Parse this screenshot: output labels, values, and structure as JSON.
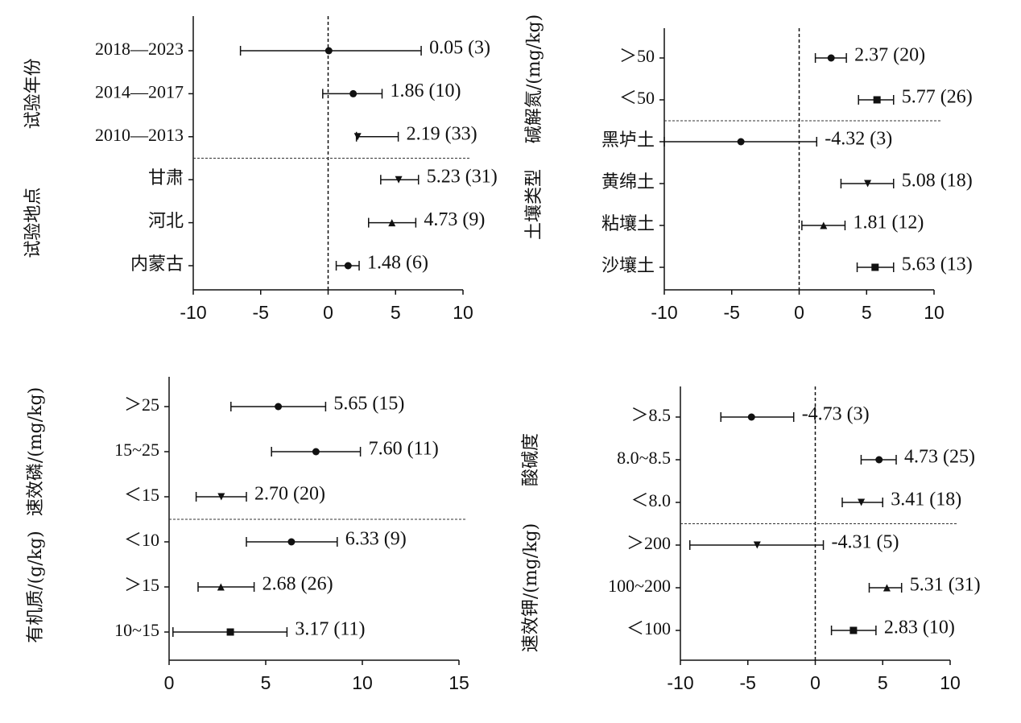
{
  "chart_data": [
    {
      "type": "forest",
      "xlim": [
        -10,
        10
      ],
      "xticks": [
        -10,
        -5,
        0,
        5,
        10
      ],
      "refline": 0,
      "groups": [
        {
          "label": "试验年份",
          "categories": [
            "2018—2023",
            "2014—2017",
            "2010—2013"
          ],
          "values": [
            0.05,
            1.86,
            2.19
          ],
          "lower": [
            -6.5,
            -0.4,
            2.1
          ],
          "upper": [
            6.9,
            4.0,
            5.2
          ],
          "value_labels": [
            "0.05 (3)",
            "1.86 (10)",
            "2.19 (33)"
          ],
          "markers": [
            "circle",
            "circle",
            "triangle-down"
          ]
        },
        {
          "label": "试验地点",
          "categories": [
            "甘肃",
            "河北",
            "内蒙古"
          ],
          "values": [
            5.23,
            4.73,
            1.48
          ],
          "lower": [
            3.9,
            3.0,
            0.6
          ],
          "upper": [
            6.7,
            6.5,
            2.3
          ],
          "value_labels": [
            "5.23 (31)",
            "4.73 (9)",
            "1.48 (6)"
          ],
          "markers": [
            "triangle-down",
            "triangle",
            "circle"
          ]
        }
      ]
    },
    {
      "type": "forest",
      "xlim": [
        -10,
        10
      ],
      "xticks": [
        -10,
        -5,
        0,
        5,
        10
      ],
      "refline": 0,
      "groups": [
        {
          "label": "碱解氮/(mg/kg)",
          "categories": [
            "＞50",
            "＜50"
          ],
          "values": [
            2.37,
            5.77
          ],
          "lower": [
            1.2,
            4.4
          ],
          "upper": [
            3.5,
            7.0
          ],
          "value_labels": [
            "2.37 (20)",
            "5.77 (26)"
          ],
          "markers": [
            "circle",
            "square"
          ]
        },
        {
          "label": "土壤类型",
          "categories": [
            "黑垆土",
            "黄绵土",
            "粘壤土",
            "沙壤土"
          ],
          "values": [
            -4.32,
            5.08,
            1.81,
            5.63
          ],
          "lower": [
            -10,
            3.1,
            0.2,
            4.3
          ],
          "upper": [
            1.3,
            7.0,
            3.4,
            7.0
          ],
          "value_labels": [
            "-4.32 (3)",
            "5.08 (18)",
            "1.81 (12)",
            "5.63 (13)"
          ],
          "markers": [
            "circle",
            "triangle-down",
            "triangle",
            "square"
          ]
        }
      ]
    },
    {
      "type": "forest",
      "xlim": [
        0,
        15
      ],
      "xticks": [
        0,
        5,
        10,
        15
      ],
      "groups": [
        {
          "label": "速效磷/(mg/kg)",
          "categories": [
            "＞25",
            "15~25",
            "＜15"
          ],
          "values": [
            5.65,
            7.6,
            2.7
          ],
          "lower": [
            3.2,
            5.3,
            1.4
          ],
          "upper": [
            8.1,
            9.9,
            4.0
          ],
          "value_labels": [
            "5.65 (15)",
            "7.60 (11)",
            "2.70 (20)"
          ],
          "markers": [
            "circle",
            "circle",
            "triangle-down"
          ]
        },
        {
          "label": "有机质/(g/kg)",
          "categories": [
            "＜10",
            "＞15",
            "10~15"
          ],
          "values": [
            6.33,
            2.68,
            3.17
          ],
          "lower": [
            4.0,
            1.5,
            0.2
          ],
          "upper": [
            8.7,
            4.4,
            6.1
          ],
          "value_labels": [
            "6.33 (9)",
            "2.68 (26)",
            "3.17 (11)"
          ],
          "markers": [
            "circle",
            "triangle",
            "square"
          ]
        }
      ]
    },
    {
      "type": "forest",
      "xlim": [
        -10,
        10
      ],
      "xticks": [
        -10,
        -5,
        0,
        5,
        10
      ],
      "refline": 0,
      "groups": [
        {
          "label": "酸碱度",
          "categories": [
            "＞8.5",
            "8.0~8.5",
            "＜8.0"
          ],
          "values": [
            -4.73,
            4.73,
            3.41
          ],
          "lower": [
            -7.0,
            3.4,
            2.0
          ],
          "upper": [
            -1.6,
            6.0,
            5.0
          ],
          "value_labels": [
            "-4.73 (3)",
            "4.73 (25)",
            "3.41 (18)"
          ],
          "markers": [
            "circle",
            "circle",
            "triangle-down"
          ]
        },
        {
          "label": "速效钾/(mg/kg)",
          "categories": [
            "＞200",
            "100~200",
            "＜100"
          ],
          "values": [
            -4.31,
            5.31,
            2.83
          ],
          "lower": [
            -9.3,
            4.0,
            1.2
          ],
          "upper": [
            0.6,
            6.4,
            4.5
          ],
          "value_labels": [
            "-4.31 (5)",
            "5.31 (31)",
            "2.83 (10)"
          ],
          "markers": [
            "triangle-down",
            "triangle",
            "square"
          ]
        }
      ]
    }
  ]
}
